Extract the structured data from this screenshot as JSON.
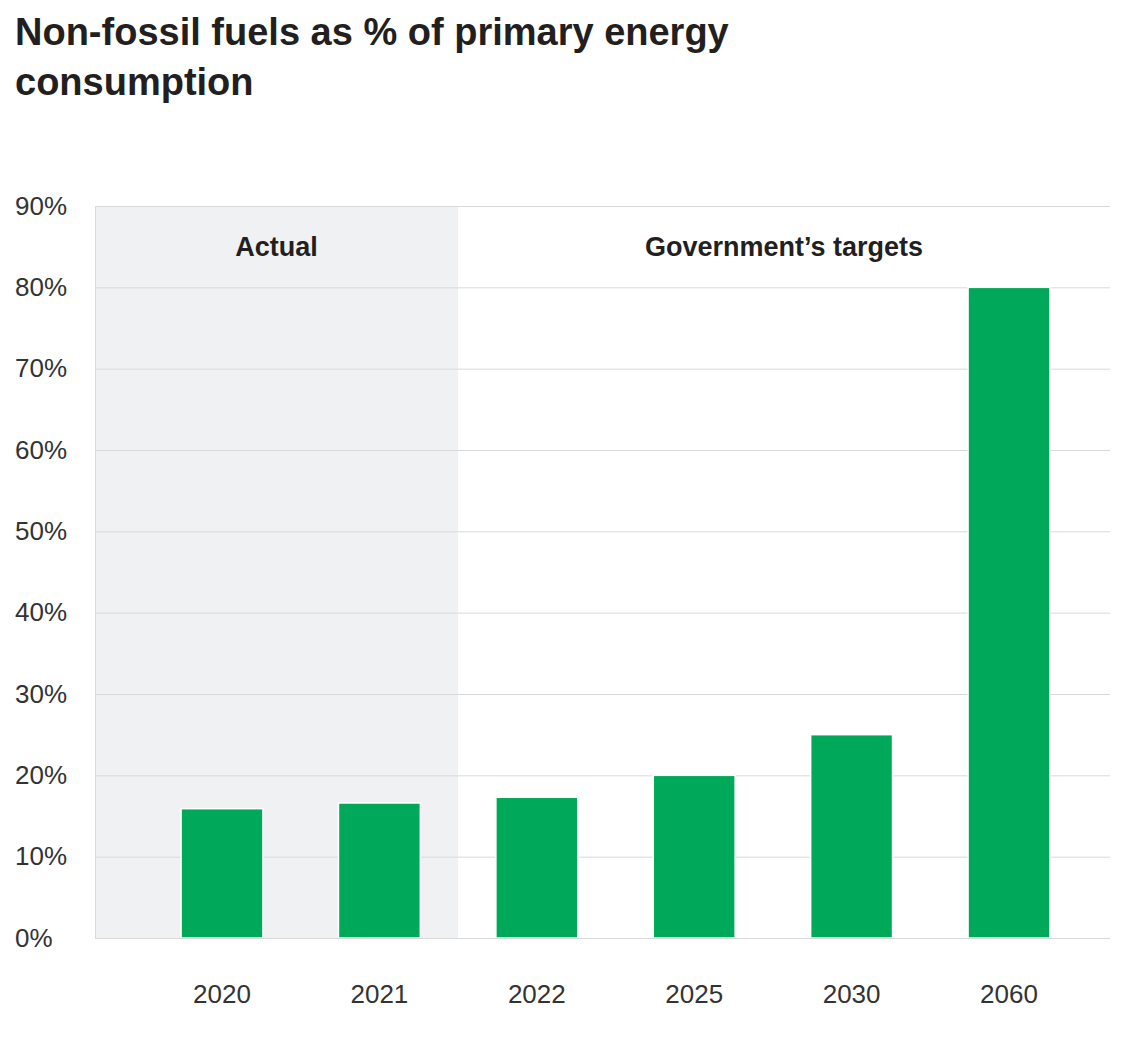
{
  "chart_data": {
    "type": "bar",
    "title": "Non-fossil fuels as % of primary energy consumption",
    "categories": [
      "2020",
      "2021",
      "2022",
      "2025",
      "2030",
      "2060"
    ],
    "values": [
      15.9,
      16.6,
      17.3,
      20,
      25,
      80
    ],
    "color": "#00a85a",
    "ylim": [
      0,
      90
    ],
    "yticks": [
      {
        "value": 0,
        "label": "0%"
      },
      {
        "value": 10,
        "label": "10%"
      },
      {
        "value": 20,
        "label": "20%"
      },
      {
        "value": 30,
        "label": "30%"
      },
      {
        "value": 40,
        "label": "40%"
      },
      {
        "value": 50,
        "label": "50%"
      },
      {
        "value": 60,
        "label": "60%"
      },
      {
        "value": 70,
        "label": "70%"
      },
      {
        "value": 80,
        "label": "80%"
      },
      {
        "value": 90,
        "label": "90%"
      }
    ],
    "grid": true,
    "annotations": [
      {
        "text": "Actual",
        "categories": [
          "2020",
          "2021"
        ]
      },
      {
        "text": "Government’s targets",
        "categories": [
          "2022",
          "2025",
          "2030",
          "2060"
        ]
      }
    ]
  }
}
